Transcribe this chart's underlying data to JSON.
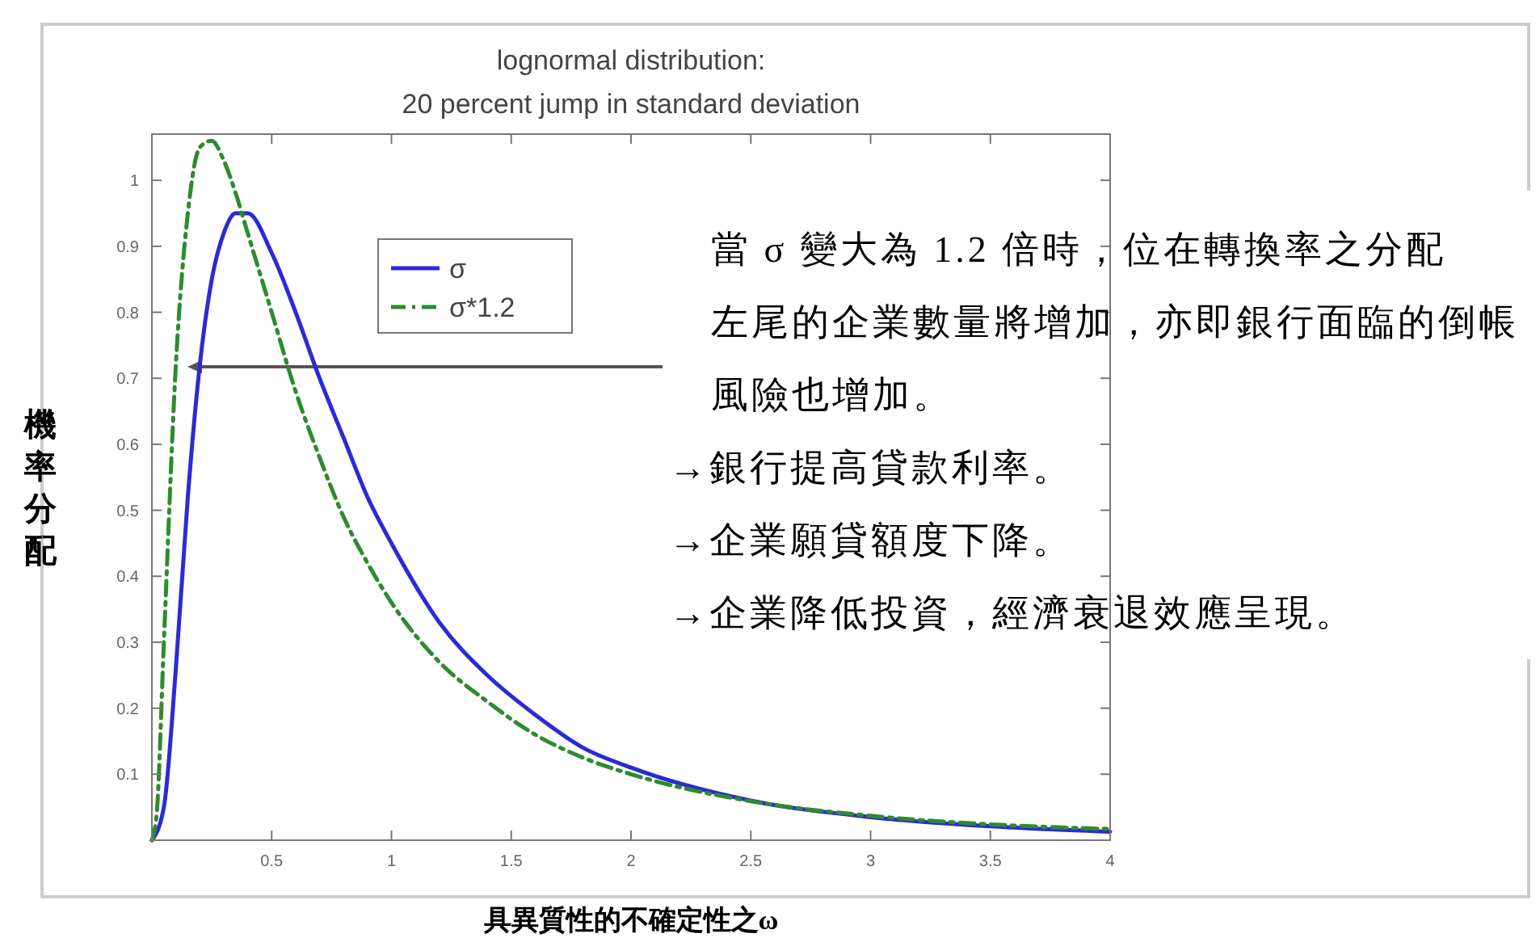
{
  "chart_data": {
    "type": "line",
    "title": "lognormal distribution:",
    "subtitle": "20 percent jump in standard deviation",
    "xlabel": "具異質性的不確定性之ω",
    "ylabel": "機率分配",
    "xlim": [
      0,
      4
    ],
    "xticks": [
      0.5,
      1,
      1.5,
      2,
      2.5,
      3,
      3.5,
      4
    ],
    "ylim": [
      0,
      1.07
    ],
    "yticks": [
      0.1,
      0.2,
      0.3,
      0.4,
      0.5,
      0.6,
      0.7,
      0.8,
      0.9,
      1
    ],
    "grid": false,
    "legend": "top left",
    "marker": "none",
    "series": [
      {
        "name": "σ",
        "color": "#2b2bd4",
        "line_style": "solid",
        "x": [
          0,
          0.05,
          0.1,
          0.15,
          0.2,
          0.25,
          0.3,
          0.35,
          0.4,
          0.5,
          0.6,
          0.7,
          0.8,
          0.9,
          1,
          1.2,
          1.4,
          1.6,
          1.8,
          2,
          2.5,
          3,
          3.5,
          4
        ],
        "values": [
          0,
          0.05,
          0.26,
          0.52,
          0.72,
          0.85,
          0.92,
          0.95,
          0.95,
          0.89,
          0.8,
          0.7,
          0.61,
          0.52,
          0.45,
          0.33,
          0.25,
          0.19,
          0.14,
          0.11,
          0.06,
          0.035,
          0.021,
          0.013
        ]
      },
      {
        "name": "σ*1.2",
        "color": "#2e8b2e",
        "line_style": "dashed",
        "x": [
          0,
          0.02,
          0.05,
          0.1,
          0.15,
          0.2,
          0.25,
          0.3,
          0.35,
          0.4,
          0.5,
          0.6,
          0.7,
          0.8,
          0.9,
          1,
          1.2,
          1.4,
          1.6,
          1.8,
          2,
          2.5,
          3,
          3.5,
          4
        ],
        "values": [
          0,
          0.04,
          0.3,
          0.72,
          0.95,
          1.05,
          1.06,
          1.03,
          0.98,
          0.92,
          0.8,
          0.68,
          0.58,
          0.49,
          0.42,
          0.36,
          0.27,
          0.21,
          0.16,
          0.125,
          0.1,
          0.059,
          0.037,
          0.024,
          0.017
        ]
      }
    ],
    "annotations": [
      "當 σ 變大為 1.2 倍時，位在轉換率之分配左尾的企業數量將增加，亦即銀行面臨的倒帳風險也增加。",
      "→銀行提高貸款利率。",
      "→企業願貸額度下降。",
      "→企業降低投資，經濟衰退效應呈現。"
    ]
  }
}
